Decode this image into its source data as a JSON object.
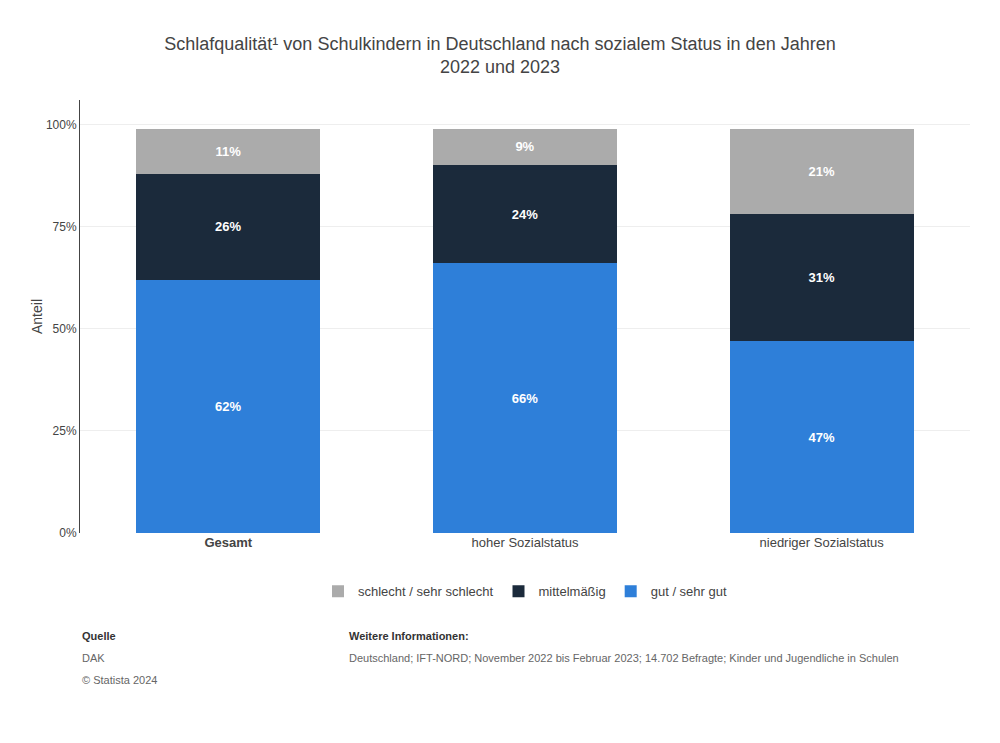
{
  "chart_data": {
    "type": "bar",
    "stacked": true,
    "title": "Schlafqualität¹ von Schulkindern in Deutschland nach sozialem Status in den Jahren\n2022 und 2023",
    "categories": [
      "Gesamt",
      "hoher Sozialstatus",
      "niedriger Sozialstatus"
    ],
    "series": [
      {
        "name": "gut / sehr gut",
        "color": "#2E7FD9",
        "values": [
          62,
          66,
          47
        ],
        "value_labels": [
          "62%",
          "66%",
          "47%"
        ]
      },
      {
        "name": "mittelmäßig",
        "color": "#1B2A3B",
        "values": [
          26,
          24,
          31
        ],
        "value_labels": [
          "26%",
          "24%",
          "31%"
        ]
      },
      {
        "name": "schlecht / sehr schlecht",
        "color": "#ABABAB",
        "values": [
          11,
          9,
          21
        ],
        "value_labels": [
          "11%",
          "9%",
          "21%"
        ]
      }
    ],
    "ylabel": "Anteil",
    "ylim": [
      0,
      106
    ],
    "yticks": [
      {
        "value": 0,
        "label": "0%"
      },
      {
        "value": 25,
        "label": "25%"
      },
      {
        "value": 50,
        "label": "50%"
      },
      {
        "value": 75,
        "label": "75%"
      },
      {
        "value": 100,
        "label": "100%"
      }
    ],
    "grid": true,
    "legend": "bottom",
    "data_labels": true,
    "annotations": [
      "Quelle",
      "DAK",
      "© Statista 2024",
      "Weitere Informationen:",
      "Deutschland; IFT-NORD; November 2022 bis Februar 2023; 14.702 Befragte; Kinder und Jugendliche in Schulen"
    ]
  }
}
